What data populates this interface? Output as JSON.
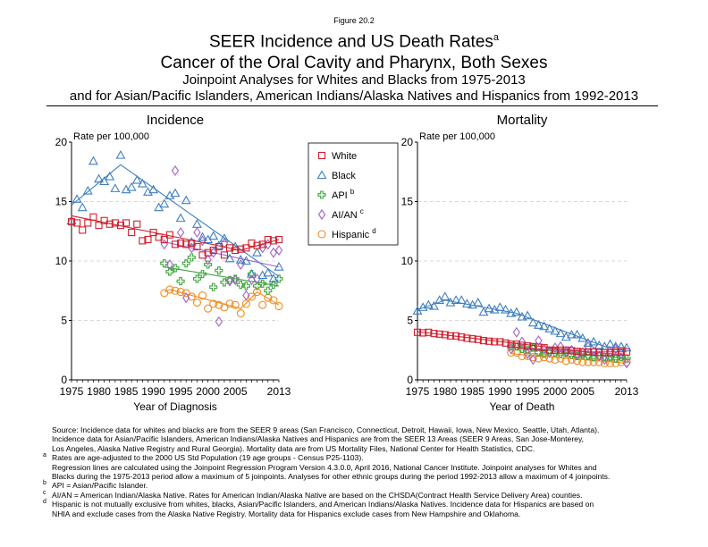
{
  "figure_label": "Figure 20.2",
  "title": "SEER Incidence and US Death Rates",
  "title_sup": "a",
  "subtitle1": "Cancer of the Oral Cavity and Pharynx, Both Sexes",
  "subtitle2": "Joinpoint Analyses for Whites and Blacks from 1975-2013",
  "subtitle3": "and for Asian/Pacific Islanders, American Indians/Alaska Natives and Hispanics from 1992-2013",
  "colors": {
    "White": "#d0202e",
    "Black": "#3f7fbf",
    "API": "#3ca63c",
    "AI/AN": "#a462c4",
    "Hispanic": "#f08c1e"
  },
  "legend": [
    {
      "name": "White",
      "sup": "",
      "marker": "square"
    },
    {
      "name": "Black",
      "sup": "",
      "marker": "triangle"
    },
    {
      "name": "API",
      "sup": "b",
      "marker": "plus"
    },
    {
      "name": "AI/AN",
      "sup": "c",
      "marker": "diamond"
    },
    {
      "name": "Hispanic",
      "sup": "d",
      "marker": "circle"
    }
  ],
  "chart_data": [
    {
      "type": "scatter",
      "title": "Incidence",
      "ylabel": "Rate per 100,000",
      "xlabel": "Year of Diagnosis",
      "xlim": [
        1975,
        2013
      ],
      "ylim": [
        0,
        20
      ],
      "xticks": [
        1975,
        1980,
        1985,
        1990,
        1995,
        2000,
        2005,
        2013
      ],
      "yticks": [
        0,
        5,
        10,
        15,
        20
      ],
      "grid": "horizontal dashed",
      "series": [
        {
          "name": "White",
          "x_start": 1975,
          "values": [
            13.3,
            13.2,
            12.6,
            13.2,
            13.7,
            13.0,
            13.4,
            13.1,
            13.2,
            13.0,
            13.2,
            12.4,
            13.1,
            11.7,
            11.8,
            12.4,
            12.0,
            11.8,
            12.2,
            11.4,
            11.5,
            11.4,
            11.5,
            11.2,
            10.5,
            10.7,
            10.9,
            11.2,
            10.5,
            11.1,
            10.9,
            11.0,
            11.1,
            11.5,
            11.3,
            11.4,
            11.8,
            11.7,
            11.8
          ],
          "trend": [
            [
              1975,
              13.8
            ],
            [
              2006,
              10.9
            ],
            [
              2013,
              11.8
            ]
          ]
        },
        {
          "name": "Black",
          "x_start": 1975,
          "values": [
            13.4,
            15.2,
            14.5,
            15.9,
            18.4,
            16.9,
            16.7,
            17.1,
            16.1,
            18.9,
            16.0,
            16.2,
            16.8,
            16.5,
            15.8,
            16.0,
            14.5,
            14.8,
            15.5,
            15.7,
            13.6,
            15.1,
            11.6,
            13.1,
            12.0,
            11.8,
            12.1,
            11.3,
            11.9,
            10.2,
            11.2,
            10.1,
            10.0,
            8.9,
            10.7,
            8.8,
            9.0,
            8.5,
            9.5
          ],
          "trend": [
            [
              1975,
              14.7
            ],
            [
              1984,
              18.1
            ],
            [
              2013,
              8.7
            ]
          ]
        },
        {
          "name": "API",
          "x_start": 1992,
          "values": [
            9.8,
            9.1,
            9.4,
            8.3,
            9.8,
            10.3,
            8.5,
            8.9,
            9.7,
            7.8,
            9.2,
            8.2,
            8.4,
            8.5,
            8.0,
            7.9,
            8.9,
            7.9,
            8.1,
            7.5,
            8.0,
            8.5
          ],
          "trend": [
            [
              1992,
              9.5
            ],
            [
              2013,
              7.9
            ]
          ]
        },
        {
          "name": "AI/AN",
          "x_start": 1992,
          "values": [
            11.4,
            9.7,
            17.6,
            12.4,
            6.9,
            11.1,
            12.4,
            11.7,
            10.1,
            10.7,
            4.9,
            11.5,
            8.3,
            8.4,
            9.7,
            7.1,
            8.4,
            8.5,
            11.1,
            11.4,
            10.7,
            10.9
          ],
          "trend": [
            [
              1992,
              11.6
            ],
            [
              2013,
              9.5
            ]
          ]
        },
        {
          "name": "Hispanic",
          "x_start": 1992,
          "values": [
            7.3,
            7.6,
            7.5,
            7.4,
            7.3,
            7.0,
            6.5,
            7.1,
            6.0,
            6.4,
            6.3,
            6.1,
            6.4,
            6.3,
            5.6,
            6.4,
            7.0,
            7.4,
            6.3,
            6.9,
            6.7,
            6.2
          ],
          "trend": [
            [
              1992,
              7.4
            ],
            [
              1993,
              7.6
            ],
            [
              2006,
              6.0
            ],
            [
              2009,
              7.4
            ],
            [
              2013,
              6.3
            ]
          ]
        }
      ]
    },
    {
      "type": "scatter",
      "title": "Mortality",
      "ylabel": "Rate per 100,000",
      "xlabel": "Year of Death",
      "xlim": [
        1975,
        2013
      ],
      "ylim": [
        0,
        20
      ],
      "xticks": [
        1975,
        1980,
        1985,
        1990,
        1995,
        2000,
        2005,
        2013
      ],
      "yticks": [
        0,
        5,
        10,
        15,
        20
      ],
      "grid": "horizontal dashed",
      "series": [
        {
          "name": "White",
          "x_start": 1975,
          "values": [
            4.0,
            3.95,
            4.0,
            3.9,
            3.85,
            3.8,
            3.7,
            3.7,
            3.6,
            3.5,
            3.45,
            3.4,
            3.3,
            3.25,
            3.2,
            3.2,
            3.1,
            3.0,
            3.0,
            2.9,
            2.85,
            2.8,
            2.75,
            2.7,
            2.5,
            2.5,
            2.5,
            2.5,
            2.45,
            2.4,
            2.35,
            2.35,
            2.35,
            2.3,
            2.3,
            2.3,
            2.35,
            2.35,
            2.35
          ],
          "trend": [
            [
              1975,
              4.05
            ],
            [
              2006,
              2.35
            ],
            [
              2013,
              2.35
            ]
          ]
        },
        {
          "name": "Black",
          "x_start": 1975,
          "values": [
            5.8,
            6.1,
            6.3,
            6.2,
            6.7,
            7.0,
            6.5,
            6.7,
            6.7,
            6.4,
            6.3,
            6.5,
            5.7,
            6.0,
            5.9,
            6.1,
            5.9,
            5.6,
            5.7,
            5.3,
            5.4,
            4.8,
            4.6,
            4.5,
            4.3,
            4.1,
            3.9,
            3.6,
            3.8,
            3.8,
            3.5,
            3.1,
            3.2,
            2.9,
            2.8,
            3.0,
            2.8,
            2.8,
            2.7
          ],
          "trend": [
            [
              1975,
              5.9
            ],
            [
              1980,
              6.7
            ],
            [
              1993,
              5.6
            ],
            [
              2009,
              2.8
            ],
            [
              2013,
              2.7
            ]
          ]
        },
        {
          "name": "API",
          "x_start": 1992,
          "values": [
            2.8,
            2.8,
            2.6,
            2.5,
            2.7,
            2.3,
            2.2,
            2.4,
            2.3,
            2.2,
            2.3,
            2.1,
            2.0,
            2.1,
            2.0,
            1.9,
            2.0,
            1.9,
            1.9,
            1.8,
            1.9,
            1.8
          ],
          "trend": [
            [
              1992,
              2.8
            ],
            [
              2013,
              1.8
            ]
          ]
        },
        {
          "name": "AI/AN",
          "x_start": 1992,
          "values": [
            2.6,
            4.0,
            3.2,
            2.2,
            1.7,
            3.3,
            2.6,
            2.3,
            2.7,
            2.8,
            2.4,
            2.5,
            2.2,
            2.3,
            2.8,
            2.4,
            2.0,
            1.7,
            2.3,
            2.6,
            2.2,
            1.4
          ],
          "trend": [
            [
              1992,
              2.8
            ],
            [
              2013,
              2.1
            ]
          ]
        },
        {
          "name": "Hispanic",
          "x_start": 1992,
          "values": [
            2.3,
            2.3,
            2.0,
            2.0,
            1.9,
            1.8,
            1.9,
            1.8,
            1.7,
            1.8,
            1.6,
            1.7,
            1.6,
            1.5,
            1.5,
            1.5,
            1.5,
            1.4,
            1.4,
            1.4,
            1.5,
            1.5
          ],
          "trend": [
            [
              1992,
              2.2
            ],
            [
              2013,
              1.4
            ]
          ]
        }
      ]
    }
  ],
  "notes": [
    {
      "mark": "",
      "text": "Source:  Incidence data for whites and blacks are from the SEER 9 areas (San Francisco, Connecticut, Detroit, Hawaii, Iowa, New Mexico, Seattle, Utah, Atlanta)."
    },
    {
      "mark": "",
      "text": "Incidence data for Asian/Pacific Islanders, American Indians/Alaska Natives and Hispanics are from the SEER 13 Areas (SEER 9 Areas, San Jose-Monterey,"
    },
    {
      "mark": "",
      "text": "Los Angeles, Alaska Native Registry and Rural Georgia).  Mortality data are from US Mortality Files, National Center for Health Statistics, CDC."
    },
    {
      "mark": "a",
      "text": "Rates are age-adjusted to the 2000 US Std Population (19 age groups - Census P25-1103)."
    },
    {
      "mark": "",
      "text": "Regression lines are calculated using the Joinpoint Regression Program Version 4.3.0.0, April 2016, National Cancer Institute.  Joinpoint analyses for Whites and"
    },
    {
      "mark": "",
      "text": "Blacks during the 1975-2013 period allow a maximum of 5 joinpoints. Analyses for other ethnic groups during the period 1992-2013 allow a maximum of 4 joinpoints."
    },
    {
      "mark": "b",
      "text": "API = Asian/Pacific Islander."
    },
    {
      "mark": "c",
      "text": "AI/AN = American Indian/Alaska Native.  Rates for American Indian/Alaska Native are based on the CHSDA(Contract Health Service Delivery Area) counties."
    },
    {
      "mark": "d",
      "text": "Hispanic is not mutually exclusive from whites, blacks, Asian/Pacific Islanders, and American Indians/Alaska Natives.  Incidence data for Hispanics are based on"
    },
    {
      "mark": "",
      "text": "NHIA and exclude cases from the Alaska Native Registry.  Mortality data for Hispanics exclude cases from New Hampshire and Oklahoma."
    }
  ]
}
